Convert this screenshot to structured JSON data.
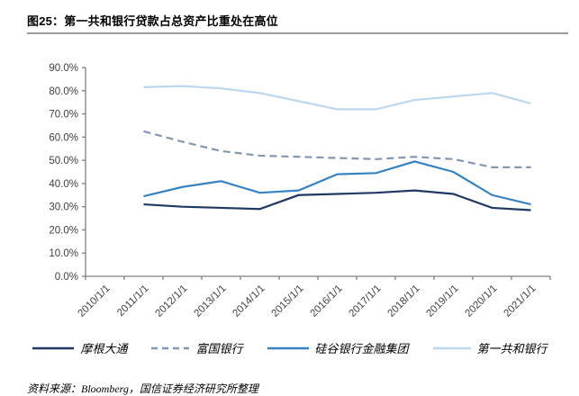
{
  "figure": {
    "title": "图25：第一共和银行贷款占总资产比重处在高位",
    "source_note": "资料来源：Bloomberg，国信证券经济研究所整理"
  },
  "chart_data": {
    "type": "line",
    "title": "图25：第一共和银行贷款占总资产比重处在高位",
    "xlabel": "",
    "ylabel": "",
    "unit": "percent_of_total_assets",
    "ylim": [
      0,
      90
    ],
    "ytick_step": 10,
    "ytick_labels": [
      "0.0%",
      "10.0%",
      "20.0%",
      "30.0%",
      "40.0%",
      "50.0%",
      "60.0%",
      "70.0%",
      "80.0%",
      "90.0%"
    ],
    "grid": false,
    "legend_position": "bottom",
    "axis_color": "#808080",
    "label_color": "#404040",
    "categories": [
      "2010/1/1",
      "2011/1/1",
      "2012/1/1",
      "2013/1/1",
      "2014/1/1",
      "2015/1/1",
      "2016/1/1",
      "2017/1/1",
      "2018/1/1",
      "2019/1/1",
      "2020/1/1",
      "2021/1/1"
    ],
    "series": [
      {
        "key": "jpmorgan",
        "name": "摩根大通",
        "color": "#1f3864",
        "dash": "solid",
        "values": [
          null,
          31,
          30,
          29.5,
          29,
          35,
          35.5,
          36,
          37,
          35.5,
          29.5,
          28.5
        ]
      },
      {
        "key": "wells-fargo",
        "name": "富国银行",
        "color": "#8496b0",
        "dash": "dashed",
        "values": [
          null,
          62.5,
          58,
          54,
          52,
          51.5,
          51,
          50.5,
          51.5,
          50.5,
          47,
          47
        ]
      },
      {
        "key": "svb-financial",
        "name": "硅谷银行金融集团",
        "color": "#3782c3",
        "dash": "solid",
        "values": [
          null,
          34.5,
          38.5,
          41,
          36,
          37,
          44,
          44.5,
          49.5,
          45,
          35,
          31
        ]
      },
      {
        "key": "first-republic",
        "name": "第一共和银行",
        "color": "#bdd7ee",
        "dash": "solid",
        "values": [
          null,
          81.5,
          82,
          81,
          79,
          75.5,
          72,
          72,
          76,
          77.5,
          79,
          74.5
        ]
      }
    ]
  }
}
